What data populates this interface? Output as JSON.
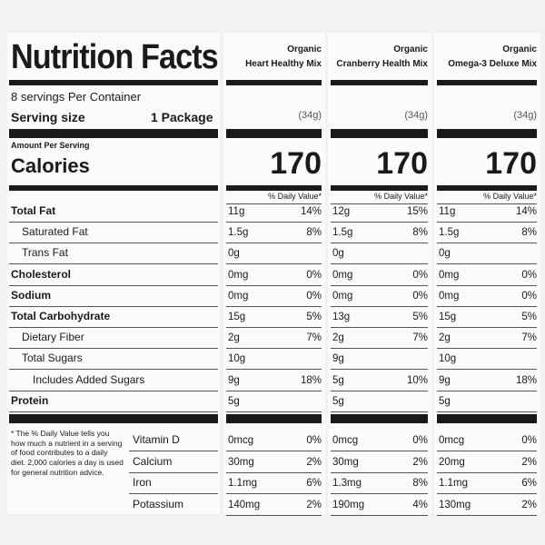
{
  "label": {
    "title": "Nutrition Facts",
    "servings": "8 servings Per Container",
    "serving_size_label": "Serving size",
    "serving_size_value": "1 Package",
    "amount_per_serving": "Amount Per Serving",
    "calories_label": "Calories",
    "nutrients": [
      "Total Fat",
      "Saturated Fat",
      "Trans Fat",
      "Cholesterol",
      "Sodium",
      "Total Carbohydrate",
      "Dietary Fiber",
      "Total Sugars",
      "Includes Added Sugars",
      "Protein"
    ],
    "footnote": "* The % Daily Value tells you how much a nutrient in a serving of food contributes to a daily diet. 2,000 calories a day is used for general nutrition advice.",
    "vitamins": [
      "Vitamin D",
      "Calcium",
      "Iron",
      "Potassium"
    ]
  },
  "products": [
    {
      "brand": "Organic",
      "name": "Heart Healthy Mix",
      "serving": "(34g)",
      "calories": 170,
      "dv_header": "% Daily Value*",
      "nutrients": [
        [
          "11g",
          "14%"
        ],
        [
          "1.5g",
          "8%"
        ],
        [
          "0g"
        ],
        [
          "0mg",
          "0%"
        ],
        [
          "0mg",
          "0%"
        ],
        [
          "15g",
          "5%"
        ],
        [
          "2g",
          "7%"
        ],
        [
          "10g"
        ],
        [
          "9g",
          "18%"
        ],
        [
          "5g"
        ]
      ],
      "vitamins": [
        [
          "0mcg",
          "0%"
        ],
        [
          "30mg",
          "2%"
        ],
        [
          "1.1mg",
          "6%"
        ],
        [
          "140mg",
          "2%"
        ]
      ]
    },
    {
      "brand": "Organic",
      "name": "Cranberry Health Mix",
      "serving": "(34g)",
      "calories": 170,
      "dv_header": "% Daily Value*",
      "nutrients": [
        [
          "12g",
          "15%"
        ],
        [
          "1.5g",
          "8%"
        ],
        [
          "0g"
        ],
        [
          "0mg",
          "0%"
        ],
        [
          "0mg",
          "0%"
        ],
        [
          "13g",
          "5%"
        ],
        [
          "2g",
          "7%"
        ],
        [
          "9g"
        ],
        [
          "5g",
          "10%"
        ],
        [
          "5g"
        ]
      ],
      "vitamins": [
        [
          "0mcg",
          "0%"
        ],
        [
          "30mg",
          "2%"
        ],
        [
          "1.3mg",
          "8%"
        ],
        [
          "190mg",
          "4%"
        ]
      ]
    },
    {
      "brand": "Organic",
      "name": "Omega-3 Deluxe Mix",
      "serving": "(34g)",
      "calories": 170,
      "dv_header": "% Daily Value*",
      "nutrients": [
        [
          "11g",
          "14%"
        ],
        [
          "1.5g",
          "8%"
        ],
        [
          "0g"
        ],
        [
          "0mg",
          "0%"
        ],
        [
          "0mg",
          "0%"
        ],
        [
          "15g",
          "5%"
        ],
        [
          "2g",
          "7%"
        ],
        [
          "10g"
        ],
        [
          "9g",
          "18%"
        ],
        [
          "5g"
        ]
      ],
      "vitamins": [
        [
          "0mcg",
          "0%"
        ],
        [
          "20mg",
          "2%"
        ],
        [
          "1.1mg",
          "6%"
        ],
        [
          "130mg",
          "2%"
        ]
      ]
    }
  ]
}
